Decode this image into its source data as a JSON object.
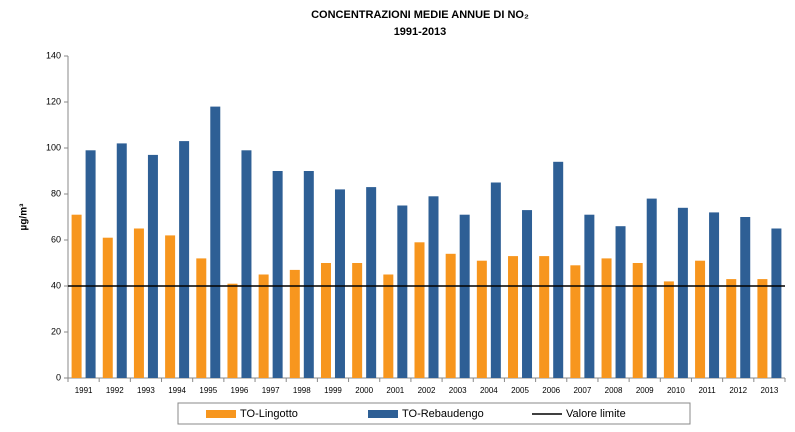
{
  "chart_data": {
    "type": "bar",
    "title": "CONCENTRAZIONI MEDIE ANNUE DI NO₂",
    "subtitle": "1991-2013",
    "y_label": "µg/m³",
    "categories": [
      "1991",
      "1992",
      "1993",
      "1994",
      "1995",
      "1996",
      "1997",
      "1998",
      "1999",
      "2000",
      "2001",
      "2002",
      "2003",
      "2004",
      "2005",
      "2006",
      "2007",
      "2008",
      "2009",
      "2010",
      "2011",
      "2012",
      "2013"
    ],
    "series": [
      {
        "name": "TO-Lingotto",
        "color": "#f7961e",
        "values": [
          71,
          61,
          65,
          62,
          52,
          41,
          45,
          47,
          50,
          50,
          45,
          59,
          54,
          51,
          53,
          53,
          49,
          52,
          50,
          42,
          51,
          43,
          43
        ]
      },
      {
        "name": "TO-Rebaudengo",
        "color": "#2e5f95",
        "values": [
          99,
          102,
          97,
          103,
          118,
          99,
          90,
          90,
          82,
          83,
          75,
          79,
          71,
          85,
          73,
          94,
          71,
          66,
          78,
          74,
          72,
          70,
          65
        ]
      }
    ],
    "limit": {
      "name": "Valore limite",
      "value": 40,
      "color": "#000000"
    },
    "ylim": [
      0,
      140
    ],
    "yticks": [
      0,
      20,
      40,
      60,
      80,
      100,
      120,
      140
    ],
    "grid": false
  }
}
